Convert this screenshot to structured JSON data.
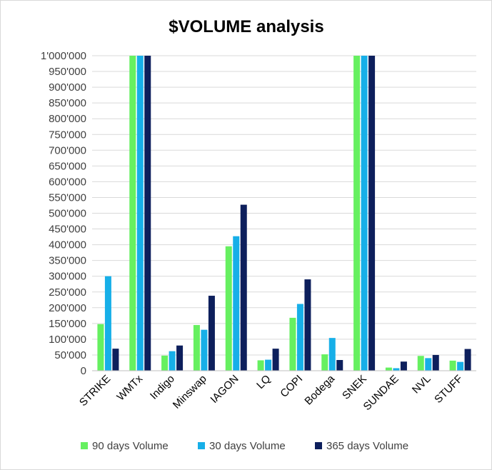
{
  "chart_data": {
    "type": "bar",
    "title": "$VOLUME analysis",
    "xlabel": "",
    "ylabel": "",
    "categories": [
      "STRIKE",
      "WMTx",
      "Indigo",
      "Minswap",
      "IAGON",
      "LQ",
      "COPI",
      "Bodega",
      "SNEK",
      "SUNDAE",
      "NVL",
      "STUFF"
    ],
    "series": [
      {
        "name": "90 days Volume",
        "color": "#66f060",
        "values": [
          148000,
          1000000,
          48000,
          145000,
          395000,
          33000,
          168000,
          52000,
          1000000,
          10000,
          47000,
          32000
        ]
      },
      {
        "name": "30 days Volume",
        "color": "#17afe8",
        "values": [
          300000,
          1000000,
          62000,
          130000,
          427000,
          35000,
          212000,
          104000,
          1000000,
          8000,
          40000,
          28000
        ]
      },
      {
        "name": "365 days Volume",
        "color": "#0d1f5c",
        "values": [
          70000,
          1000000,
          80000,
          238000,
          527000,
          70000,
          290000,
          34000,
          1000000,
          29000,
          50000,
          69000
        ]
      }
    ],
    "ylim": [
      0,
      1000000
    ],
    "yticks": [
      "0",
      "50'000",
      "100'000",
      "150'000",
      "200'000",
      "250'000",
      "300'000",
      "350'000",
      "400'000",
      "450'000",
      "500'000",
      "550'000",
      "600'000",
      "650'000",
      "700'000",
      "750'000",
      "800'000",
      "850'000",
      "900'000",
      "950'000",
      "1'000'000"
    ],
    "grid": true,
    "legend": "bottom"
  }
}
